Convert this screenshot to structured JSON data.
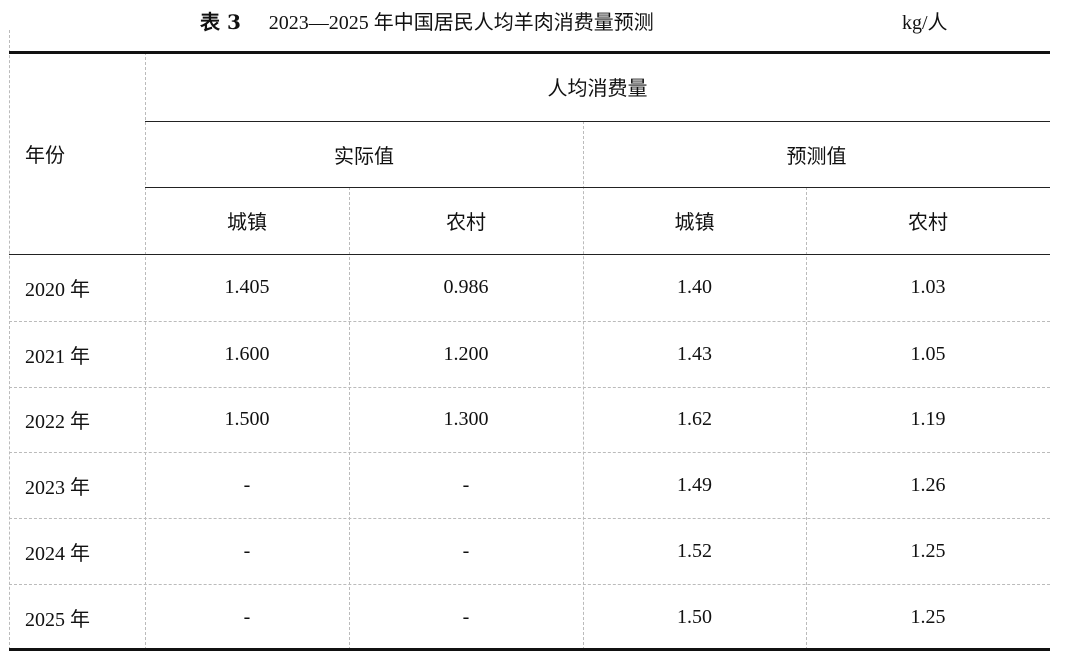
{
  "title": {
    "label": "表 3",
    "text": "2023—2025 年中国居民人均羊肉消费量预测",
    "unit": "kg/人"
  },
  "header": {
    "year": "年份",
    "group": "人均消费量",
    "actual": "实际值",
    "forecast": "预测值",
    "sub": [
      "城镇",
      "农村",
      "城镇",
      "农村"
    ]
  },
  "rows": [
    {
      "year": "2020 年",
      "values": [
        "1.405",
        "0.986",
        "1.40",
        "1.03"
      ]
    },
    {
      "year": "2021 年",
      "values": [
        "1.600",
        "1.200",
        "1.43",
        "1.05"
      ]
    },
    {
      "year": "2022 年",
      "values": [
        "1.500",
        "1.300",
        "1.62",
        "1.19"
      ]
    },
    {
      "year": "2023 年",
      "values": [
        "-",
        "-",
        "1.49",
        "1.26"
      ]
    },
    {
      "year": "2024 年",
      "values": [
        "-",
        "-",
        "1.52",
        "1.25"
      ]
    },
    {
      "year": "2025 年",
      "values": [
        "-",
        "-",
        "1.50",
        "1.25"
      ]
    }
  ]
}
